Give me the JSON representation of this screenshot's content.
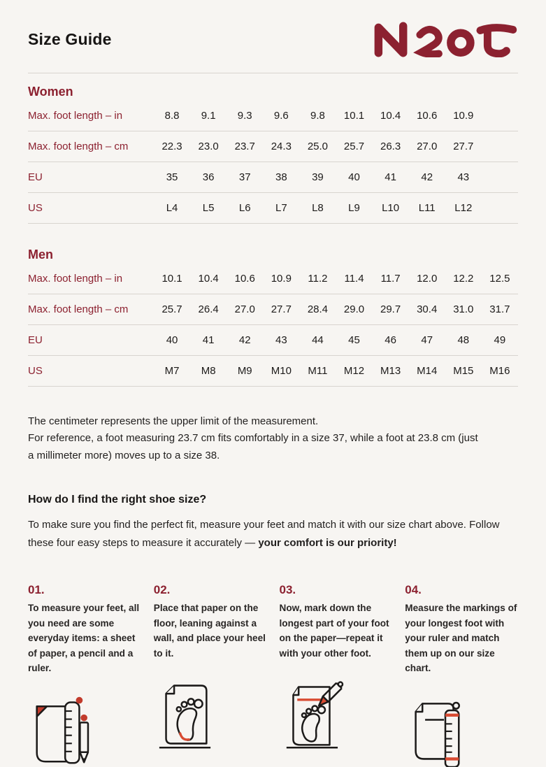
{
  "header": {
    "title": "Size Guide",
    "brand": "Naot",
    "brand_logo_icon": "naot-logo"
  },
  "women": {
    "heading": "Women",
    "rows": [
      {
        "label": "Max. foot length – in",
        "values": [
          "8.8",
          "9.1",
          "9.3",
          "9.6",
          "9.8",
          "10.1",
          "10.4",
          "10.6",
          "10.9"
        ]
      },
      {
        "label": "Max. foot length – cm",
        "values": [
          "22.3",
          "23.0",
          "23.7",
          "24.3",
          "25.0",
          "25.7",
          "26.3",
          "27.0",
          "27.7"
        ]
      },
      {
        "label": "EU",
        "values": [
          "35",
          "36",
          "37",
          "38",
          "39",
          "40",
          "41",
          "42",
          "43"
        ]
      },
      {
        "label": "US",
        "values": [
          "L4",
          "L5",
          "L6",
          "L7",
          "L8",
          "L9",
          "L10",
          "L11",
          "L12"
        ]
      }
    ]
  },
  "men": {
    "heading": "Men",
    "rows": [
      {
        "label": "Max. foot length – in",
        "values": [
          "10.1",
          "10.4",
          "10.6",
          "10.9",
          "11.2",
          "11.4",
          "11.7",
          "12.0",
          "12.2",
          "12.5"
        ]
      },
      {
        "label": "Max. foot length – cm",
        "values": [
          "25.7",
          "26.4",
          "27.0",
          "27.7",
          "28.4",
          "29.0",
          "29.7",
          "30.4",
          "31.0",
          "31.7"
        ]
      },
      {
        "label": "EU",
        "values": [
          "40",
          "41",
          "42",
          "43",
          "44",
          "45",
          "46",
          "47",
          "48",
          "49"
        ]
      },
      {
        "label": "US",
        "values": [
          "M7",
          "M8",
          "M9",
          "M10",
          "M11",
          "M12",
          "M13",
          "M14",
          "M15",
          "M16"
        ]
      }
    ]
  },
  "notes": {
    "line1": "The centimeter represents the upper limit of the measurement.",
    "line2": "For reference, a foot measuring 23.7 cm fits comfortably in a size 37, while a foot at 23.8 cm (just a millimeter more) moves up to a size 38."
  },
  "how_to": {
    "heading": "How do I find the right shoe size?",
    "intro_text": "To make sure you find the perfect fit, measure your feet and match it with our size chart above. Follow these four easy steps to measure it accurately — ",
    "intro_emphasis": "your comfort is our priority!"
  },
  "steps": [
    {
      "number": "01.",
      "text": "To measure your feet, all you need are some everyday items: a sheet of paper, a pencil and a ruler.",
      "icon": "paper-ruler-pencil-icon"
    },
    {
      "number": "02.",
      "text": "Place that paper on the floor, leaning against a wall, and place your heel to it.",
      "icon": "paper-footprint-icon"
    },
    {
      "number": "03.",
      "text": "Now, mark down the longest part of your foot on the paper—repeat it with your other foot.",
      "icon": "paper-footprint-pencil-icon"
    },
    {
      "number": "04.",
      "text": "Measure the markings of your longest foot with your ruler and match them up on our size chart.",
      "icon": "paper-ruler-marks-icon"
    }
  ],
  "colors": {
    "background": "#F7F5F2",
    "brand_red": "#8C2130",
    "accent_red": "#D84B32",
    "fold_red": "#C23B2C",
    "text": "#1D1B1A",
    "divider": "#D8D4CF"
  }
}
